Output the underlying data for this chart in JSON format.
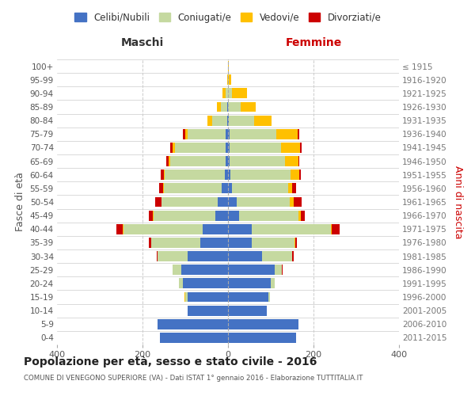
{
  "age_groups": [
    "0-4",
    "5-9",
    "10-14",
    "15-19",
    "20-24",
    "25-29",
    "30-34",
    "35-39",
    "40-44",
    "45-49",
    "50-54",
    "55-59",
    "60-64",
    "65-69",
    "70-74",
    "75-79",
    "80-84",
    "85-89",
    "90-94",
    "95-99",
    "100+"
  ],
  "birth_years": [
    "2011-2015",
    "2006-2010",
    "2001-2005",
    "1996-2000",
    "1991-1995",
    "1986-1990",
    "1981-1985",
    "1976-1980",
    "1971-1975",
    "1966-1970",
    "1961-1965",
    "1956-1960",
    "1951-1955",
    "1946-1950",
    "1941-1945",
    "1936-1940",
    "1931-1935",
    "1926-1930",
    "1921-1925",
    "1916-1920",
    "≤ 1915"
  ],
  "colors": {
    "celibe": "#4472c4",
    "coniugato": "#c5d9a0",
    "vedovo": "#ffc000",
    "divorziato": "#cc0000"
  },
  "males": {
    "celibe": [
      160,
      165,
      95,
      95,
      105,
      110,
      95,
      65,
      60,
      30,
      25,
      15,
      8,
      6,
      5,
      5,
      2,
      1,
      0,
      0,
      0
    ],
    "coniugato": [
      0,
      0,
      0,
      5,
      10,
      20,
      70,
      115,
      185,
      145,
      130,
      135,
      140,
      130,
      120,
      90,
      35,
      15,
      5,
      0,
      0
    ],
    "vedovo": [
      0,
      0,
      0,
      2,
      0,
      0,
      0,
      0,
      1,
      1,
      1,
      2,
      2,
      3,
      5,
      5,
      12,
      10,
      8,
      2,
      0
    ],
    "divorziato": [
      0,
      0,
      0,
      0,
      0,
      0,
      2,
      5,
      15,
      10,
      15,
      10,
      8,
      5,
      5,
      5,
      0,
      0,
      0,
      0,
      0
    ]
  },
  "females": {
    "celibe": [
      160,
      165,
      90,
      95,
      100,
      110,
      80,
      55,
      55,
      25,
      20,
      10,
      6,
      4,
      4,
      3,
      2,
      0,
      0,
      0,
      0
    ],
    "coniugato": [
      0,
      0,
      0,
      3,
      10,
      15,
      70,
      100,
      185,
      140,
      125,
      130,
      140,
      130,
      120,
      110,
      60,
      30,
      10,
      2,
      0
    ],
    "vedovo": [
      0,
      0,
      0,
      0,
      0,
      0,
      0,
      2,
      2,
      5,
      8,
      10,
      20,
      30,
      45,
      50,
      40,
      35,
      35,
      5,
      2
    ],
    "divorziato": [
      0,
      0,
      0,
      0,
      0,
      2,
      3,
      5,
      20,
      10,
      20,
      10,
      5,
      3,
      3,
      3,
      0,
      0,
      0,
      0,
      0
    ]
  },
  "title": "Popolazione per età, sesso e stato civile - 2016",
  "subtitle": "COMUNE DI VENEGONO SUPERIORE (VA) - Dati ISTAT 1° gennaio 2016 - Elaborazione TUTTITALIA.IT",
  "xlabel_left": "Maschi",
  "xlabel_right": "Femmine",
  "ylabel_left": "Fasce di età",
  "ylabel_right": "Anni di nascita",
  "xlim": 400,
  "legend_labels": [
    "Celibi/Nubili",
    "Coniugati/e",
    "Vedovi/e",
    "Divorziati/e"
  ],
  "background_color": "#ffffff",
  "grid_color": "#cccccc"
}
